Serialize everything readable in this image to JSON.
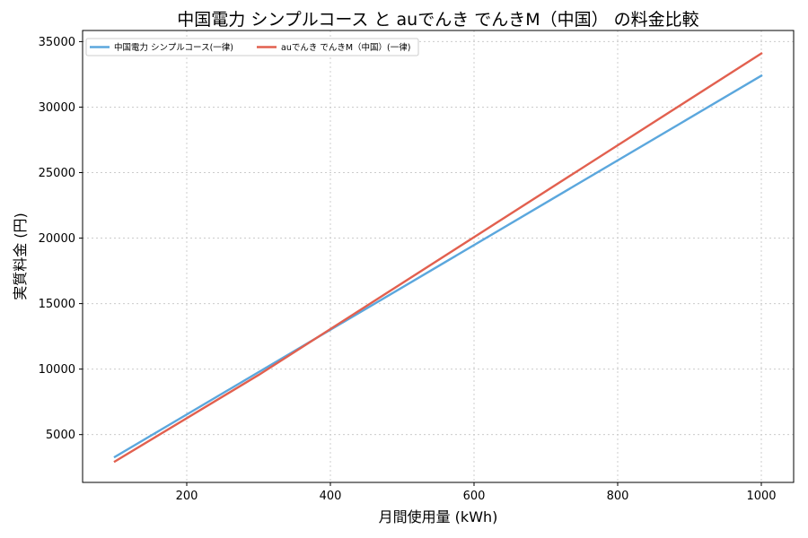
{
  "chart_data": {
    "type": "line",
    "title": "中国電力 シンプルコース と auでんき でんきM（中国） の料金比較",
    "xlabel": "月間使用量 (kWh)",
    "ylabel": "実質料金 (円)",
    "xlim": [
      55,
      1045
    ],
    "ylim": [
      1350,
      35850
    ],
    "xticks": [
      200,
      400,
      600,
      800,
      1000
    ],
    "yticks": [
      5000,
      10000,
      15000,
      20000,
      25000,
      30000,
      35000
    ],
    "grid": true,
    "legend_position": "top-left",
    "series": [
      {
        "name": "中国電力 シンプルコース(一律)",
        "color": "#5ba7dd",
        "x": [
          100,
          1000
        ],
        "y": [
          3300,
          32400
        ]
      },
      {
        "name": "auでんき でんきM（中国）(一律)",
        "color": "#e2604f",
        "x": [
          100,
          300,
          1000
        ],
        "y": [
          2950,
          9550,
          34100
        ]
      }
    ]
  }
}
